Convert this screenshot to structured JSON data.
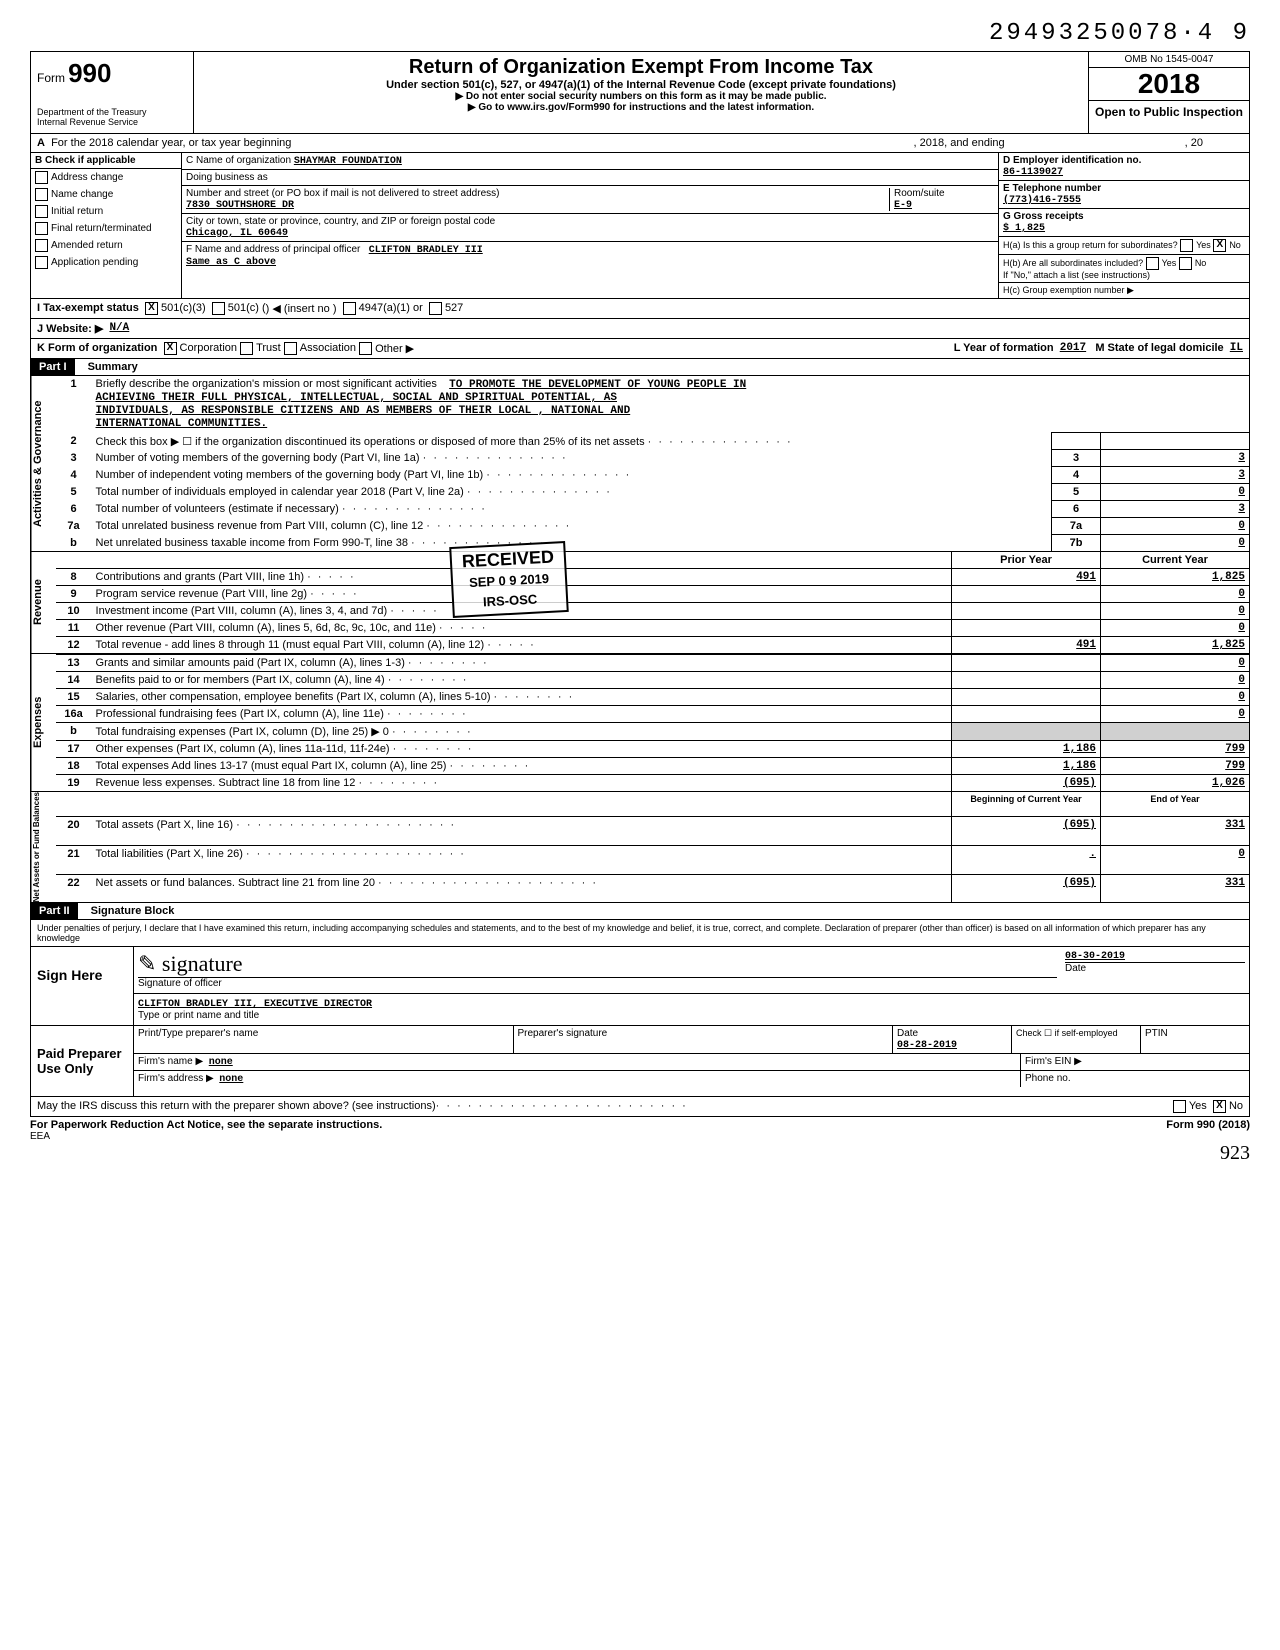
{
  "topNumber": "29493250078·4 9",
  "form": {
    "label": "Form",
    "number": "990",
    "title": "Return of Organization Exempt From Income Tax",
    "subtitle": "Under section 501(c), 527, or 4947(a)(1) of the Internal Revenue Code (except private foundations)",
    "note1": "▶ Do not enter social security numbers on this form as it may be made public.",
    "note2": "▶ Go to www.irs.gov/Form990 for instructions and the latest information.",
    "dept1": "Department of the Treasury",
    "dept2": "Internal Revenue Service",
    "omb": "OMB No 1545-0047",
    "year": "2018",
    "openPublic": "Open to Public Inspection"
  },
  "lineA": {
    "label": "A",
    "text": "For the 2018 calendar year, or tax year beginning",
    "mid": ", 2018, and ending",
    "end": ", 20"
  },
  "checkApplicable": {
    "header": "B   Check if applicable",
    "items": [
      "Address change",
      "Name change",
      "Initial return",
      "Final return/terminated",
      "Amended return",
      "Application pending"
    ]
  },
  "org": {
    "nameLabel": "C Name of organization",
    "name": "SHAYMAR   FOUNDATION",
    "dbaLabel": "Doing business as",
    "streetLabel": "Number and street (or PO box if mail is not delivered to street address)",
    "street": "7830   SOUTHSHORE DR",
    "roomLabel": "Room/suite",
    "room": "E-9",
    "cityLabel": "City or town, state or province, country, and ZIP or foreign postal code",
    "city": "Chicago, IL 60649",
    "officerLabel": "F  Name and address of principal officer",
    "officer": "CLIFTON BRADLEY III",
    "officerAddr": "Same as C above"
  },
  "rightBox": {
    "dLabel": "D  Employer identification no.",
    "ein": "86-1139027",
    "eLabel": "E  Telephone number",
    "phone": "(773)416-7555",
    "gLabel": "G  Gross receipts",
    "gross": "$           1,825",
    "haLabel": "H(a) Is this a group return for subordinates?",
    "haYes": "Yes",
    "haNo": "No",
    "hbLabel": "H(b) Are all subordinates included?",
    "hbYes": "Yes",
    "hbNo": "No",
    "hNote": "If \"No,\" attach a list (see instructions)",
    "hcLabel": "H(c)  Group exemption number  ▶"
  },
  "status": {
    "iLabel": "I      Tax-exempt status",
    "opts": [
      "501(c)(3)",
      "501(c) (",
      ") ◀ (insert no )",
      "4947(a)(1) or",
      "527"
    ],
    "jLabel": "J      Website: ▶",
    "website": "N/A",
    "kLabel": "K     Form of organization",
    "kOpts": [
      "Corporation",
      "Trust",
      "Association",
      "Other ▶"
    ],
    "lLabel": "L  Year of formation",
    "lVal": "2017",
    "mLabel": "M  State of legal domicile",
    "mVal": "IL"
  },
  "part1": {
    "label": "Part I",
    "title": "Summary"
  },
  "mission": {
    "lineNo": "1",
    "intro": "Briefly describe the organization's mission or most significant activities",
    "text1": "TO PROMOTE THE DEVELOPMENT OF YOUNG PEOPLE IN",
    "text2": "ACHIEVING THEIR FULL PHYSICAL, INTELLECTUAL, SOCIAL AND SPIRITUAL POTENTIAL, AS",
    "text3": "INDIVIDUALS, AS RESPONSIBLE CITIZENS AND AS MEMBERS OF THEIR LOCAL , NATIONAL AND",
    "text4": "INTERNATIONAL COMMUNITIES."
  },
  "govLines": [
    {
      "no": "2",
      "text": "Check this box ▶ ☐ if the organization discontinued its operations or disposed of more than 25% of its net assets",
      "num": "",
      "val": ""
    },
    {
      "no": "3",
      "text": "Number of voting members of the governing body (Part VI, line 1a)",
      "num": "3",
      "val": "3"
    },
    {
      "no": "4",
      "text": "Number of independent voting members of the governing body (Part VI, line 1b)",
      "num": "4",
      "val": "3"
    },
    {
      "no": "5",
      "text": "Total number of individuals employed in calendar year 2018 (Part V, line 2a)",
      "num": "5",
      "val": "0"
    },
    {
      "no": "6",
      "text": "Total number of volunteers (estimate if necessary)",
      "num": "6",
      "val": "3"
    },
    {
      "no": "7a",
      "text": "Total unrelated business revenue from Part VIII, column (C), line 12",
      "num": "7a",
      "val": "0"
    },
    {
      "no": "b",
      "text": "Net unrelated business taxable income from Form 990-T, line 38",
      "num": "7b",
      "val": "0"
    }
  ],
  "revHeader": {
    "prior": "Prior Year",
    "current": "Current Year"
  },
  "revLines": [
    {
      "no": "8",
      "text": "Contributions and grants (Part VIII, line 1h)",
      "prior": "491",
      "current": "1,825"
    },
    {
      "no": "9",
      "text": "Program service revenue (Part VIII, line 2g)",
      "prior": "",
      "current": "0"
    },
    {
      "no": "10",
      "text": "Investment income (Part VIII, column (A), lines 3, 4, and 7d)",
      "prior": "",
      "current": "0"
    },
    {
      "no": "11",
      "text": "Other revenue (Part VIII, column (A), lines 5, 6d, 8c, 9c, 10c, and 11e)",
      "prior": "",
      "current": "0"
    },
    {
      "no": "12",
      "text": "Total revenue - add lines 8 through 11 (must equal Part VIII, column (A), line 12)",
      "prior": "491",
      "current": "1,825"
    }
  ],
  "expLines": [
    {
      "no": "13",
      "text": "Grants and similar amounts paid (Part IX, column (A), lines 1-3)",
      "prior": "",
      "current": "0"
    },
    {
      "no": "14",
      "text": "Benefits paid to or for members (Part IX, column (A), line 4)",
      "prior": "",
      "current": "0"
    },
    {
      "no": "15",
      "text": "Salaries, other compensation, employee benefits (Part IX, column (A), lines 5-10)",
      "prior": "",
      "current": "0"
    },
    {
      "no": "16a",
      "text": "Professional fundraising fees (Part IX, column (A), line 11e)",
      "prior": "",
      "current": "0"
    },
    {
      "no": "b",
      "text": "Total fundraising expenses (Part IX, column (D), line 25)  ▶              0",
      "prior": "—",
      "current": "—"
    },
    {
      "no": "17",
      "text": "Other expenses (Part IX, column (A), lines 11a-11d, 11f-24e)",
      "prior": "1,186",
      "current": "799"
    },
    {
      "no": "18",
      "text": "Total expenses  Add lines 13-17 (must equal Part IX, column (A), line 25)",
      "prior": "1,186",
      "current": "799"
    },
    {
      "no": "19",
      "text": "Revenue less expenses. Subtract line 18 from line 12",
      "prior": "(695)",
      "current": "1,026"
    }
  ],
  "netHeader": {
    "begin": "Beginning of Current Year",
    "end": "End of Year"
  },
  "netLines": [
    {
      "no": "20",
      "text": "Total assets (Part X, line 16)",
      "begin": "(695)",
      "end": "331"
    },
    {
      "no": "21",
      "text": "Total liabilities (Part X, line 26)",
      "begin": ".",
      "end": "0"
    },
    {
      "no": "22",
      "text": "Net assets or fund balances. Subtract line 21 from line 20",
      "begin": "(695)",
      "end": "331"
    }
  ],
  "part2": {
    "label": "Part II",
    "title": "Signature Block"
  },
  "perjury": "Under penalties of perjury, I declare that I have examined this return, including accompanying schedules and statements, and to the best of my knowledge and belief, it is true, correct, and complete. Declaration of preparer (other than officer) is based on all information of which preparer has any knowledge",
  "sign": {
    "label": "Sign Here",
    "sigLabel": "Signature of officer",
    "dateLabel": "Date",
    "date": "08-30-2019",
    "nameLabel": "Type or print name and title",
    "name": "CLIFTON BRADLEY III, EXECUTIVE DIRECTOR"
  },
  "preparer": {
    "label": "Paid Preparer Use Only",
    "nameLabel": "Print/Type preparer's name",
    "sigLabel": "Preparer's signature",
    "dateLabel": "Date",
    "date": "08-28-2019",
    "checkLabel": "Check ☐ if self-employed",
    "ptinLabel": "PTIN",
    "firmLabel": "Firm's name   ▶",
    "firm": "none",
    "einLabel": "Firm's EIN  ▶",
    "addrLabel": "Firm's address ▶",
    "addr": "none",
    "phoneLabel": "Phone no."
  },
  "discuss": {
    "text": "May the IRS discuss this return with the preparer shown above? (see instructions)",
    "yes": "Yes",
    "no": "No"
  },
  "footer": {
    "left": "For Paperwork Reduction Act Notice, see the separate instructions.",
    "mid": "EEA",
    "right": "Form 990 (2018)"
  },
  "received": {
    "label": "RECEIVED",
    "date": "SEP 0 9 2019",
    "office": "IRS-OSC"
  },
  "pageFoot": "923",
  "sideLabels": {
    "gov": "Activities & Governance",
    "rev": "Revenue",
    "exp": "Expenses",
    "net": "Net Assets or Fund Balances"
  }
}
